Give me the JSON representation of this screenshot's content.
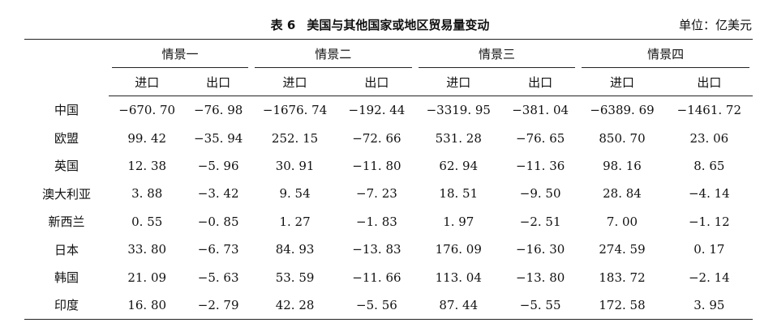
{
  "caption": {
    "number": "表 6",
    "title": "美国与其他国家或地区贸易量变动",
    "unit": "单位：亿美元"
  },
  "scenarios": [
    "情景一",
    "情景二",
    "情景三",
    "情景四"
  ],
  "subheaders": [
    "进口",
    "出口"
  ],
  "rows": [
    {
      "name": "中国",
      "values": [
        "−670. 70",
        "−76. 98",
        "−1676. 74",
        "−192. 44",
        "−3319. 95",
        "−381. 04",
        "−6389. 69",
        "−1461. 72"
      ]
    },
    {
      "name": "欧盟",
      "values": [
        "99. 42",
        "−35. 94",
        "252. 15",
        "−72. 66",
        "531. 28",
        "−76. 65",
        "850. 70",
        "23. 06"
      ]
    },
    {
      "name": "英国",
      "values": [
        "12. 38",
        "−5. 96",
        "30. 91",
        "−11. 80",
        "62. 94",
        "−11. 36",
        "98. 16",
        "8. 65"
      ]
    },
    {
      "name": "澳大利亚",
      "values": [
        "3. 88",
        "−3. 42",
        "9. 54",
        "−7. 23",
        "18. 51",
        "−9. 50",
        "28. 84",
        "−4. 14"
      ]
    },
    {
      "name": "新西兰",
      "values": [
        "0. 55",
        "−0. 85",
        "1. 27",
        "−1. 83",
        "1. 97",
        "−2. 51",
        "7. 00",
        "−1. 12"
      ]
    },
    {
      "name": "日本",
      "values": [
        "33. 80",
        "−6. 73",
        "84. 93",
        "−13. 83",
        "176. 09",
        "−16. 30",
        "274. 59",
        "0. 17"
      ]
    },
    {
      "name": "韩国",
      "values": [
        "21. 09",
        "−5. 63",
        "53. 59",
        "−11. 66",
        "113. 04",
        "−13. 80",
        "183. 72",
        "−2. 14"
      ]
    },
    {
      "name": "印度",
      "values": [
        "16. 80",
        "−2. 79",
        "42. 28",
        "−5. 56",
        "87. 44",
        "−5. 55",
        "172. 58",
        "3. 95"
      ]
    }
  ]
}
